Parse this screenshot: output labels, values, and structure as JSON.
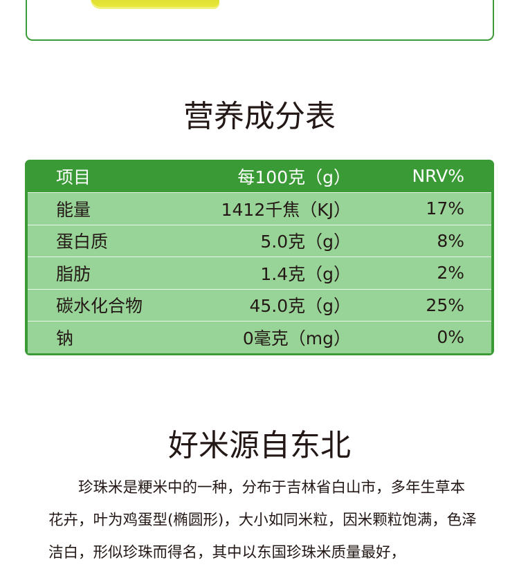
{
  "nutrition_title": "营养成分表",
  "table": {
    "headers": [
      "项目",
      "每100克（g）",
      "NRV%"
    ],
    "rows": [
      [
        "能量",
        "1412千焦（KJ）",
        "17%"
      ],
      [
        "蛋白质",
        "5.0克（g）",
        "8%"
      ],
      [
        "脂肪",
        "1.4克（g）",
        "2%"
      ],
      [
        "碳水化合物",
        "45.0克（g）",
        "25%"
      ],
      [
        "钠",
        "0毫克（mg）",
        "0%"
      ]
    ]
  },
  "origin_title": "好米源自东北",
  "paragraph": "珍珠米是粳米中的一种，分布于吉林省白山市，多年生草本花卉，叶为鸡蛋型(椭圆形)，大小如同米粒，因米颗粒饱满，色泽洁白，形似珍珠而得名，其中以东国珍珠米质量最好，",
  "colors": {
    "header": "#3a9a35",
    "row": "#98d497"
  }
}
